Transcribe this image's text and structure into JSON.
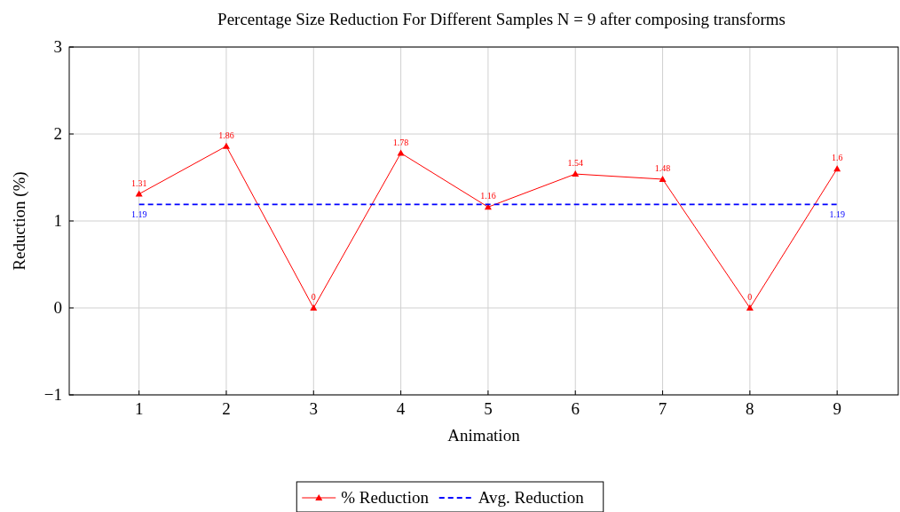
{
  "chart_data": {
    "type": "line",
    "title": "Percentage Size Reduction For Different Samples N = 9 after composing transforms",
    "xlabel": "Animation",
    "ylabel": "Reduction (%)",
    "xlim": [
      0.2,
      9.7
    ],
    "xticks": [
      1,
      2,
      3,
      4,
      5,
      6,
      7,
      8,
      9
    ],
    "ylim": [
      -1,
      3
    ],
    "yticks": [
      {
        "value": -1,
        "label": "−1"
      },
      0,
      1,
      2,
      3
    ],
    "grid": true,
    "legend": "bottom",
    "data_labels": true,
    "series": [
      {
        "name": "% Reduction",
        "color": "#ff0000",
        "marker": "triangle",
        "line_style": "solid",
        "x": [
          1,
          2,
          3,
          4,
          5,
          6,
          7,
          8,
          9
        ],
        "values": [
          1.31,
          1.86,
          0,
          1.78,
          1.16,
          1.54,
          1.48,
          0,
          1.6
        ]
      },
      {
        "name": "Avg. Reduction",
        "color": "#0000ff",
        "marker": "none",
        "line_style": "dashed",
        "x": [
          1,
          9
        ],
        "values": [
          1.19,
          1.19
        ]
      }
    ]
  }
}
